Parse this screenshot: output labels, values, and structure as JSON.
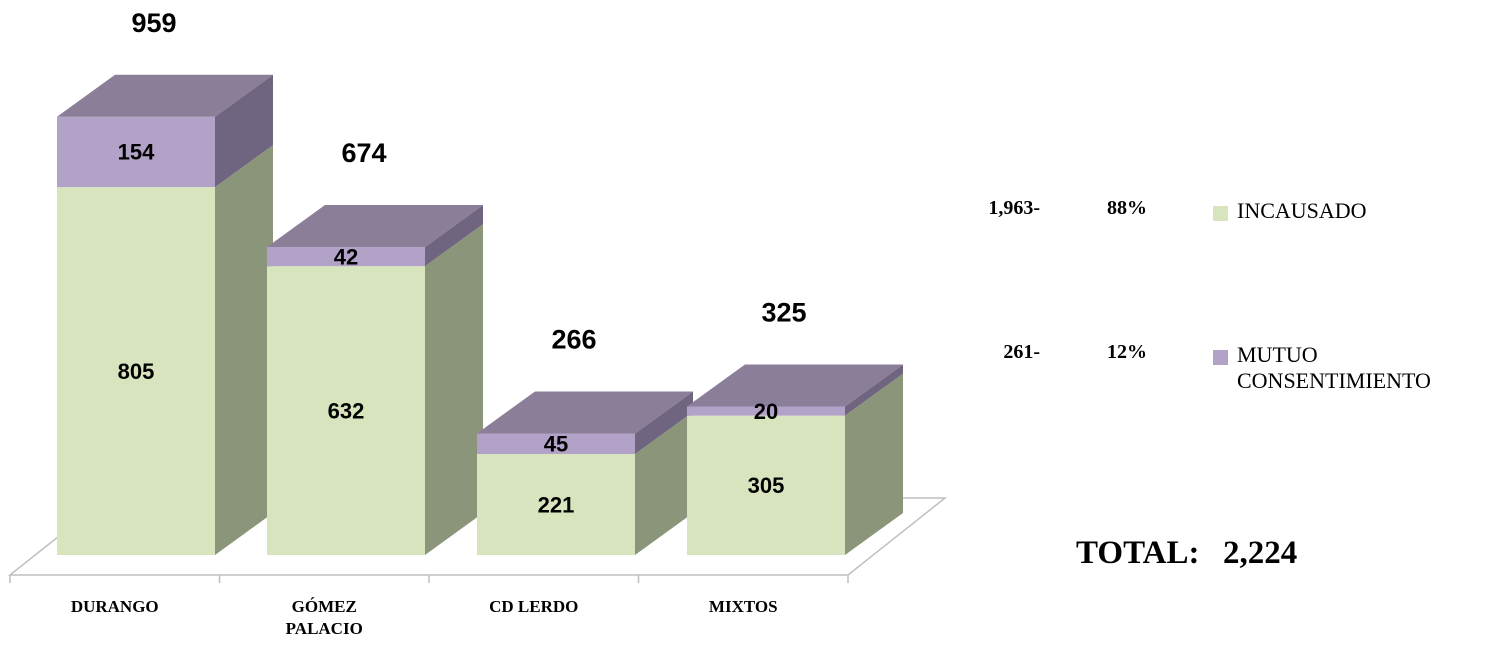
{
  "chart_data": {
    "type": "bar3d_stacked",
    "categories": [
      "DURANGO",
      "GÓMEZ PALACIO",
      "CD LERDO",
      "MIXTOS"
    ],
    "series": [
      {
        "name": "INCAUSADO",
        "color": "#d7e4bd",
        "side_color": "#8b9579",
        "top_color": "#c3d1a6",
        "values": [
          805,
          632,
          221,
          305
        ]
      },
      {
        "name": "MUTUO CONSENTIMIENTO",
        "color": "#b3a2c7",
        "side_color": "#706580",
        "top_color": "#8b7e99",
        "values": [
          154,
          42,
          45,
          20
        ]
      }
    ],
    "totals": [
      959,
      674,
      266,
      325
    ],
    "shares": [
      {
        "count": "1,963-",
        "percent": "88%"
      },
      {
        "count": "261-",
        "percent": "12%"
      }
    ],
    "total_title": "TOTAL:",
    "total_value": "2,224"
  }
}
